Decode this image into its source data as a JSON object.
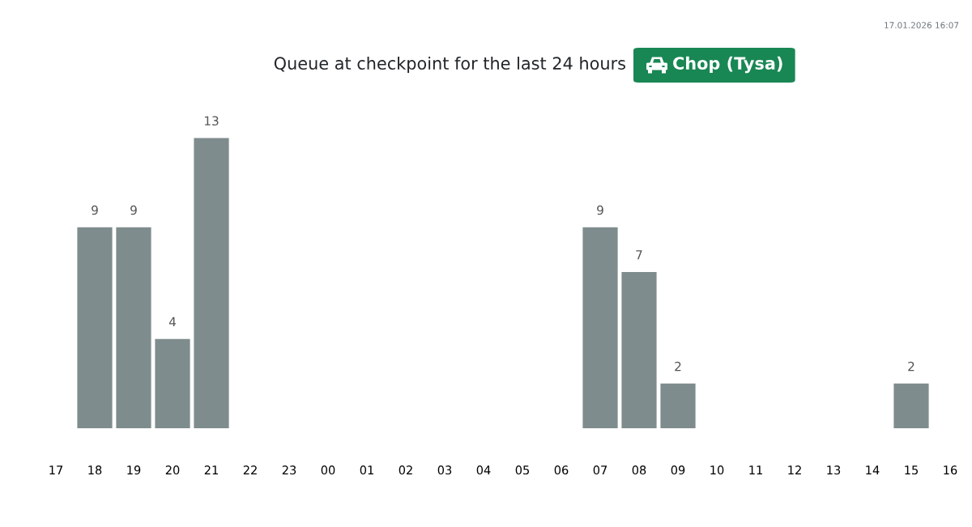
{
  "chart_data": {
    "type": "bar",
    "title": "Queue at checkpoint for the last 24 hours",
    "subtitle": "Chop (Tysa)",
    "categories": [
      "17",
      "18",
      "19",
      "20",
      "21",
      "22",
      "23",
      "00",
      "01",
      "02",
      "03",
      "04",
      "05",
      "06",
      "07",
      "08",
      "09",
      "10",
      "11",
      "12",
      "13",
      "14",
      "15",
      "16"
    ],
    "values": [
      null,
      9,
      9,
      4,
      13,
      null,
      null,
      null,
      null,
      null,
      null,
      null,
      null,
      null,
      9,
      7,
      2,
      null,
      null,
      null,
      null,
      null,
      2,
      null
    ],
    "color": "#7f8c8d",
    "data_labels": true,
    "annotations": [
      "17.01.2026 16:07"
    ]
  }
}
